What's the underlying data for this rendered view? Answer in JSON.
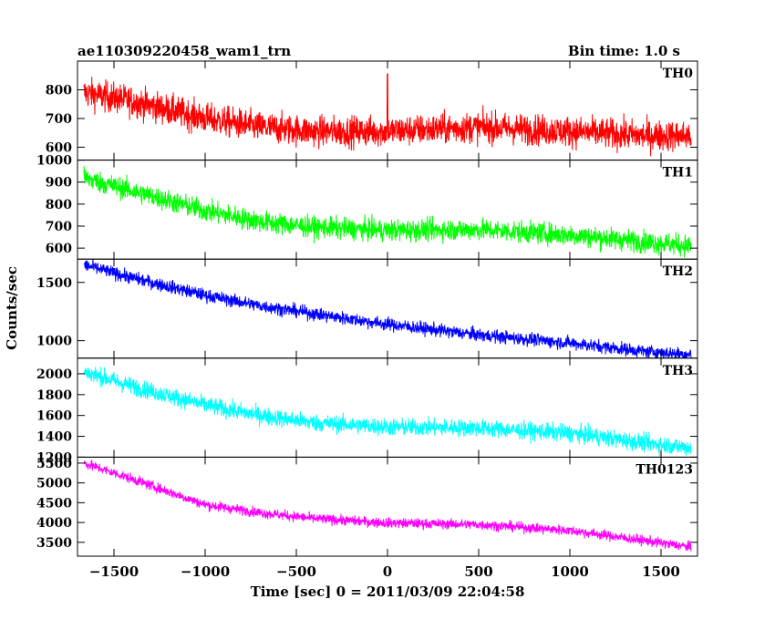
{
  "chart_data": {
    "type": "line",
    "title_left": "ae110309220458_wam1_trn",
    "title_right": "Bin time: 1.0 s",
    "xlabel": "Time [sec] 0 = 2011/03/09 22:04:58",
    "ylabel": "Counts/sec",
    "xlim": [
      -1700,
      1700
    ],
    "xticks": [
      -1500,
      -1000,
      -500,
      0,
      500,
      1000,
      1500
    ],
    "xtick_labels": [
      "−1500",
      "−1000",
      "−500",
      "0",
      "500",
      "1000",
      "1500"
    ],
    "x_range_data": [
      -1665,
      1665
    ],
    "grid": false,
    "legend": "per-panel label top-right",
    "series": [
      {
        "name": "TH0",
        "color": "#ff0000",
        "ylim": [
          555,
          900
        ],
        "yticks": [
          600,
          700,
          800
        ],
        "trend_x": [
          -1665,
          -1400,
          -1000,
          -700,
          -400,
          0,
          500,
          1000,
          1400,
          1665
        ],
        "trend_y": [
          790,
          760,
          700,
          670,
          655,
          655,
          670,
          655,
          640,
          640
        ],
        "noise": 38,
        "spike_x": 0,
        "spike_y": 855
      },
      {
        "name": "TH1",
        "color": "#00ff00",
        "ylim": [
          550,
          1000
        ],
        "yticks": [
          600,
          700,
          800,
          900,
          1000
        ],
        "trend_x": [
          -1665,
          -1400,
          -1000,
          -700,
          -400,
          0,
          500,
          1000,
          1400,
          1665
        ],
        "trend_y": [
          920,
          860,
          770,
          720,
          695,
          680,
          685,
          660,
          630,
          610
        ],
        "noise": 35
      },
      {
        "name": "TH2",
        "color": "#0000ff",
        "ylim": [
          850,
          1700
        ],
        "yticks": [
          1000,
          1500
        ],
        "trend_x": [
          -1665,
          -1400,
          -1000,
          -700,
          -400,
          0,
          500,
          1000,
          1400,
          1665
        ],
        "trend_y": [
          1650,
          1540,
          1390,
          1300,
          1230,
          1140,
          1050,
          980,
          910,
          880
        ],
        "noise": 40
      },
      {
        "name": "TH3",
        "color": "#00ffff",
        "ylim": [
          1200,
          2150
        ],
        "yticks": [
          1200,
          1400,
          1600,
          1800,
          2000
        ],
        "trend_x": [
          -1665,
          -1400,
          -1000,
          -700,
          -400,
          0,
          500,
          1000,
          1400,
          1665
        ],
        "trend_y": [
          2020,
          1880,
          1700,
          1600,
          1530,
          1490,
          1480,
          1430,
          1340,
          1290
        ],
        "noise": 60
      },
      {
        "name": "TH0123",
        "color": "#ff00ff",
        "ylim": [
          3150,
          5650
        ],
        "yticks": [
          3500,
          4000,
          4500,
          5000,
          5500
        ],
        "trend_x": [
          -1665,
          -1400,
          -1000,
          -700,
          -400,
          0,
          500,
          1000,
          1400,
          1665
        ],
        "trend_y": [
          5500,
          5100,
          4450,
          4250,
          4100,
          3990,
          3950,
          3800,
          3550,
          3380
        ],
        "noise": 90
      }
    ]
  }
}
